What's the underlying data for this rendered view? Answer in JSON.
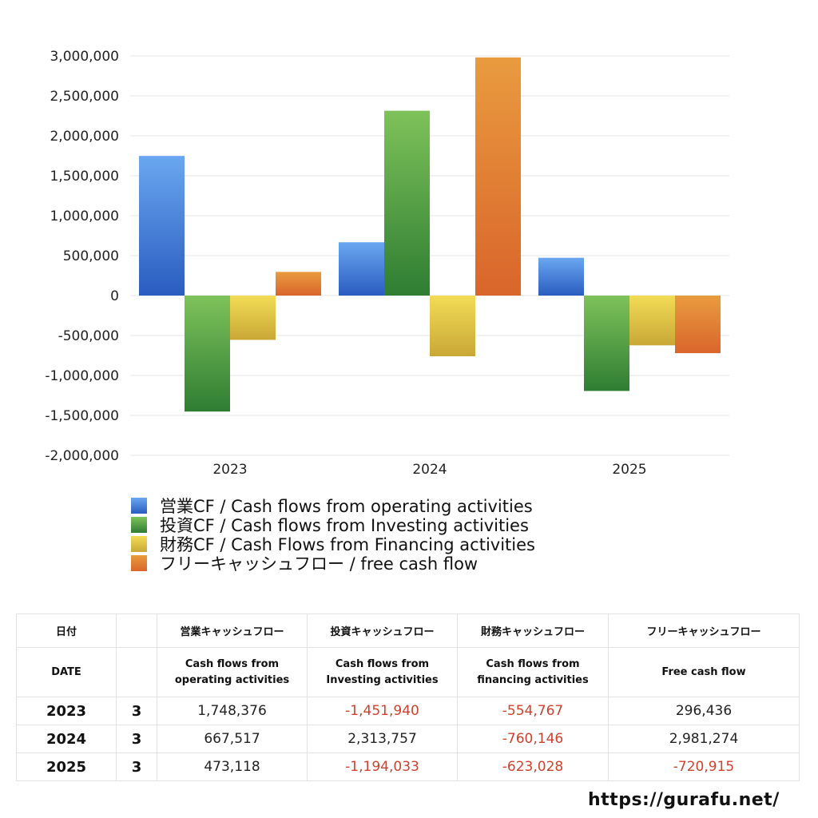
{
  "chart_data": {
    "type": "bar",
    "categories": [
      "2023",
      "2024",
      "2025"
    ],
    "ylim": [
      -2000000,
      3000000
    ],
    "yticks": [
      3000000,
      2500000,
      2000000,
      1500000,
      1000000,
      500000,
      0,
      -500000,
      -1000000,
      -1500000,
      -2000000
    ],
    "ytick_labels": [
      "3,000,000",
      "2,500,000",
      "2,000,000",
      "1,500,000",
      "1,000,000",
      "500,000",
      "0",
      "-500,000",
      "-1,000,000",
      "-1,500,000",
      "-2,000,000"
    ],
    "grid": true,
    "legend_position": "bottom-left",
    "series": [
      {
        "name": "営業CF / Cash flows from operating activities",
        "values": [
          1748376,
          667517,
          473118
        ],
        "color_top": "#6aa7f0",
        "color_bottom": "#2a5cc0"
      },
      {
        "name": "投資CF / Cash flows from Investing activities",
        "values": [
          -1451940,
          2313757,
          -1194033
        ],
        "color_top": "#7ec25a",
        "color_bottom": "#2e7d32"
      },
      {
        "name": "財務CF / Cash Flows from Financing activities",
        "values": [
          -554767,
          -760146,
          -623028
        ],
        "color_top": "#f2dc56",
        "color_bottom": "#c9a836"
      },
      {
        "name": "フリーキャッシュフロー / free cash flow",
        "values": [
          296436,
          2981274,
          -720915
        ],
        "color_top": "#e99b3f",
        "color_bottom": "#d9652b"
      }
    ]
  },
  "table": {
    "header1": [
      "日付",
      "",
      "営業キャッシュフロー",
      "投資キャッシュフロー",
      "財務キャッシュフロー",
      "フリーキャッシュフロー"
    ],
    "header2": [
      "DATE",
      "",
      "Cash flows from\noperating activities",
      "Cash flows from\nInvesting activities",
      "Cash flows from\nfinancing activities",
      "Free cash flow"
    ],
    "rows": [
      {
        "year": "2023",
        "month": "3",
        "cells": [
          {
            "text": "1,748,376",
            "neg": false
          },
          {
            "text": "-1,451,940",
            "neg": true
          },
          {
            "text": "-554,767",
            "neg": true
          },
          {
            "text": "296,436",
            "neg": false
          }
        ]
      },
      {
        "year": "2024",
        "month": "3",
        "cells": [
          {
            "text": "667,517",
            "neg": false
          },
          {
            "text": "2,313,757",
            "neg": false
          },
          {
            "text": "-760,146",
            "neg": true
          },
          {
            "text": "2,981,274",
            "neg": false
          }
        ]
      },
      {
        "year": "2025",
        "month": "3",
        "cells": [
          {
            "text": "473,118",
            "neg": false
          },
          {
            "text": "-1,194,033",
            "neg": true
          },
          {
            "text": "-623,028",
            "neg": true
          },
          {
            "text": "-720,915",
            "neg": true
          }
        ]
      }
    ],
    "negative_color": "#d0412b"
  },
  "site_url": "https://gurafu.net/"
}
